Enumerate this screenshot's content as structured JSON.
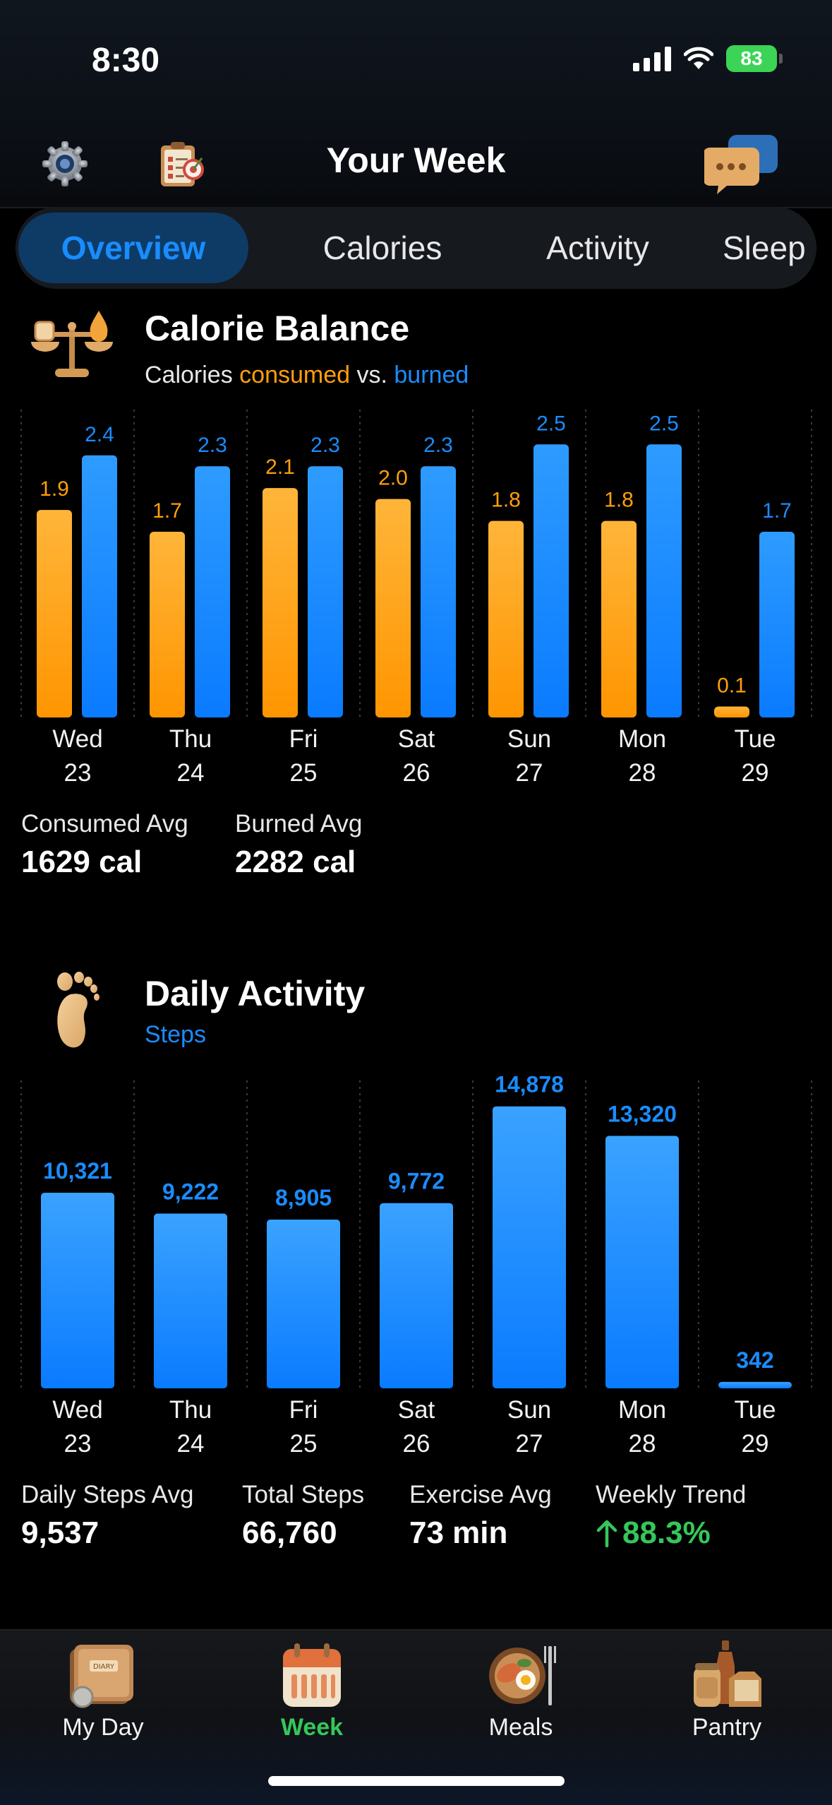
{
  "status": {
    "time": "8:30",
    "battery": "83"
  },
  "nav": {
    "title": "Your Week"
  },
  "tabs": [
    "Overview",
    "Calories",
    "Activity",
    "Sleep"
  ],
  "calorie": {
    "title": "Calorie Balance",
    "subtitle_prefix": "Calories ",
    "subtitle_consumed": "consumed",
    "subtitle_vs": " vs. ",
    "subtitle_burned": "burned",
    "consumed_avg_label": "Consumed Avg",
    "consumed_avg_value": "1629 cal",
    "burned_avg_label": "Burned Avg",
    "burned_avg_value": "2282 cal",
    "colors": {
      "consumed": "#ff9f0a",
      "burned": "#1a8cff"
    }
  },
  "activity": {
    "title": "Daily Activity",
    "subtitle": "Steps",
    "stats": [
      {
        "label": "Daily Steps Avg",
        "value": "9,537"
      },
      {
        "label": "Total Steps",
        "value": "66,760"
      },
      {
        "label": "Exercise Avg",
        "value": "73 min"
      },
      {
        "label": "Weekly Trend",
        "value": "88.3%",
        "trend": "up"
      }
    ],
    "trend_color": "#35c759"
  },
  "chart_data": [
    {
      "type": "bar",
      "categories": [
        "Wed 23",
        "Thu 24",
        "Fri 25",
        "Sat 26",
        "Sun 27",
        "Mon 28",
        "Tue 29"
      ],
      "day_names": [
        "Wed",
        "Thu",
        "Fri",
        "Sat",
        "Sun",
        "Mon",
        "Tue"
      ],
      "day_numbers": [
        "23",
        "24",
        "25",
        "26",
        "27",
        "28",
        "29"
      ],
      "series": [
        {
          "name": "consumed",
          "values": [
            1.9,
            1.7,
            2.1,
            2.0,
            1.8,
            1.8,
            0.1
          ],
          "labels": [
            "1.9",
            "1.7",
            "2.1",
            "2.0",
            "1.8",
            "1.8",
            "0.1"
          ]
        },
        {
          "name": "burned",
          "values": [
            2.4,
            2.3,
            2.3,
            2.3,
            2.5,
            2.5,
            1.7
          ],
          "labels": [
            "2.4",
            "2.3",
            "2.3",
            "2.3",
            "2.5",
            "2.5",
            "1.7"
          ]
        }
      ],
      "ylim": [
        0,
        2.7
      ]
    },
    {
      "type": "bar",
      "categories": [
        "Wed 23",
        "Thu 24",
        "Fri 25",
        "Sat 26",
        "Sun 27",
        "Mon 28",
        "Tue 29"
      ],
      "day_names": [
        "Wed",
        "Thu",
        "Fri",
        "Sat",
        "Sun",
        "Mon",
        "Tue"
      ],
      "day_numbers": [
        "23",
        "24",
        "25",
        "26",
        "27",
        "28",
        "29"
      ],
      "values": [
        10321,
        9222,
        8905,
        9772,
        14878,
        13320,
        342
      ],
      "labels": [
        "10,321",
        "9,222",
        "8,905",
        "9,772",
        "14,878",
        "13,320",
        "342"
      ],
      "ylim": [
        0,
        15500
      ]
    }
  ],
  "tabbar": {
    "items": [
      {
        "label": "My Day",
        "icon": "diary-icon"
      },
      {
        "label": "Week",
        "icon": "calendar-icon",
        "active": true
      },
      {
        "label": "Meals",
        "icon": "plate-icon"
      },
      {
        "label": "Pantry",
        "icon": "jars-icon"
      }
    ]
  }
}
